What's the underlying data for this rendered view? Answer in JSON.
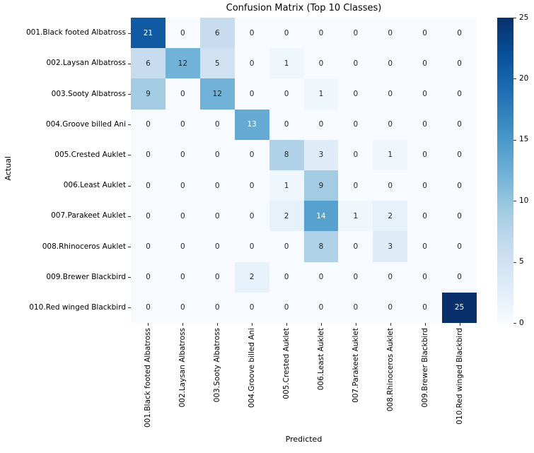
{
  "figure": {
    "title": "Confusion Matrix (Top 10 Classes)"
  },
  "chart_data": {
    "type": "heatmap",
    "title": "Confusion Matrix (Top 10 Classes)",
    "xlabel": "Predicted",
    "ylabel": "Actual",
    "x_categories": [
      "001.Black footed Albatross",
      "002.Laysan Albatross",
      "003.Sooty Albatross",
      "004.Groove billed Ani",
      "005.Crested Auklet",
      "006.Least Auklet",
      "007.Parakeet Auklet",
      "008.Rhinoceros Auklet",
      "009.Brewer Blackbird",
      "010.Red winged Blackbird"
    ],
    "y_categories": [
      "001.Black footed Albatross",
      "002.Laysan Albatross",
      "003.Sooty Albatross",
      "004.Groove billed Ani",
      "005.Crested Auklet",
      "006.Least Auklet",
      "007.Parakeet Auklet",
      "008.Rhinoceros Auklet",
      "009.Brewer Blackbird",
      "010.Red winged Blackbird"
    ],
    "matrix": [
      [
        21,
        0,
        6,
        0,
        0,
        0,
        0,
        0,
        0,
        0
      ],
      [
        6,
        12,
        5,
        0,
        1,
        0,
        0,
        0,
        0,
        0
      ],
      [
        9,
        0,
        12,
        0,
        0,
        1,
        0,
        0,
        0,
        0
      ],
      [
        0,
        0,
        0,
        13,
        0,
        0,
        0,
        0,
        0,
        0
      ],
      [
        0,
        0,
        0,
        0,
        8,
        3,
        0,
        1,
        0,
        0
      ],
      [
        0,
        0,
        0,
        0,
        1,
        9,
        0,
        0,
        0,
        0
      ],
      [
        0,
        0,
        0,
        0,
        2,
        14,
        1,
        2,
        0,
        0
      ],
      [
        0,
        0,
        0,
        0,
        0,
        8,
        0,
        3,
        0,
        0
      ],
      [
        0,
        0,
        0,
        2,
        0,
        0,
        0,
        0,
        0,
        0
      ],
      [
        0,
        0,
        0,
        0,
        0,
        0,
        0,
        0,
        0,
        25
      ]
    ],
    "vmin": 0,
    "vmax": 25,
    "colorbar_ticks": [
      25,
      20,
      15,
      10,
      5,
      0
    ],
    "colormap": "Blues",
    "colormap_stops": [
      "#f7fbff",
      "#deebf7",
      "#c6dbef",
      "#9ecae1",
      "#6baed6",
      "#4292c6",
      "#2171b5",
      "#08519c",
      "#08306b"
    ],
    "annotation_text_dark": "#262626",
    "annotation_text_light": "#ffffff",
    "legend_position": "right-colorbar",
    "grid": false
  }
}
